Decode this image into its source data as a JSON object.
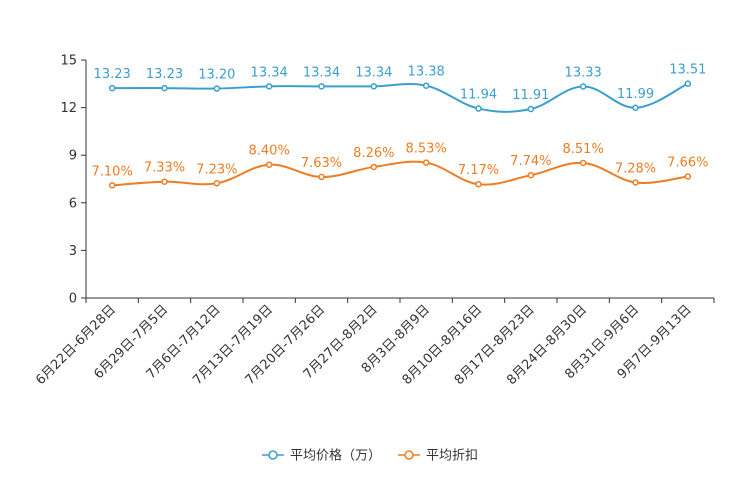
{
  "chart_data": {
    "type": "line",
    "title": "",
    "xlabel": "",
    "ylabel": "",
    "ylim": [
      0,
      15
    ],
    "yticks": [
      0,
      3,
      6,
      9,
      12,
      15
    ],
    "grid": false,
    "legend_position": "bottom",
    "categories": [
      "6月22日-6月28日",
      "6月29日-7月5日",
      "7月6日-7月12日",
      "7月13日-7月19日",
      "7月20日-7月26日",
      "7月27日-8月2日",
      "8月3日-8月9日",
      "8月10日-8月16日",
      "8月17日-8月23日",
      "8月24日-8月30日",
      "8月31日-9月6日",
      "9月7日-9月13日"
    ],
    "series": [
      {
        "name": "平均价格（万）",
        "color": "#3a9fcf",
        "values": [
          13.23,
          13.23,
          13.2,
          13.34,
          13.34,
          13.34,
          13.38,
          11.94,
          11.91,
          13.33,
          11.99,
          13.51
        ],
        "labels": [
          "13.23",
          "13.23",
          "13.20",
          "13.34",
          "13.34",
          "13.34",
          "13.38",
          "11.94",
          "11.91",
          "13.33",
          "11.99",
          "13.51"
        ]
      },
      {
        "name": "平均折扣",
        "color": "#f07c22",
        "values": [
          7.1,
          7.33,
          7.23,
          8.4,
          7.63,
          8.26,
          8.53,
          7.17,
          7.74,
          8.51,
          7.28,
          7.66
        ],
        "labels": [
          "7.10%",
          "7.33%",
          "7.23%",
          "8.40%",
          "7.63%",
          "8.26%",
          "8.53%",
          "7.17%",
          "7.74%",
          "8.51%",
          "7.28%",
          "7.66%"
        ]
      }
    ]
  }
}
